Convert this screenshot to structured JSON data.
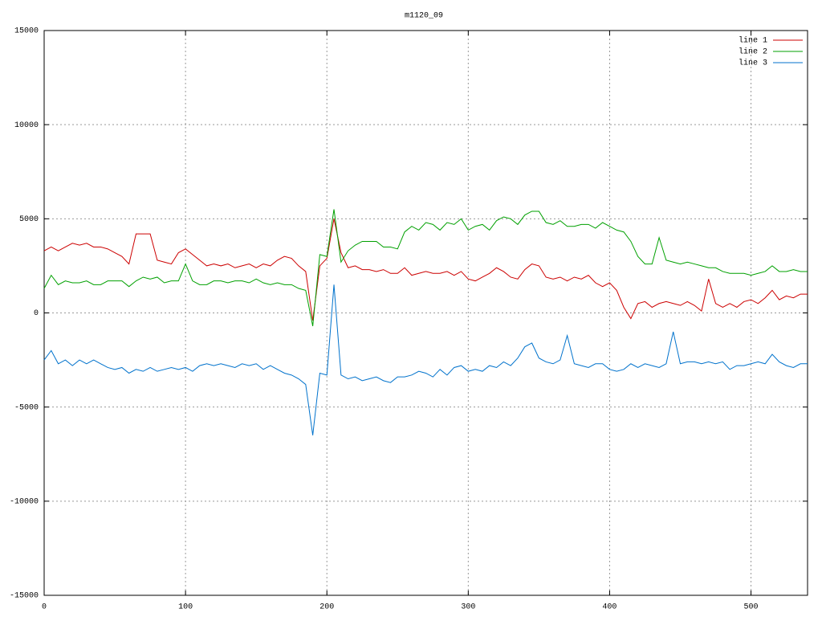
{
  "chart_data": {
    "type": "line",
    "title": "m1120_09",
    "x": [
      0,
      5,
      10,
      15,
      20,
      25,
      30,
      35,
      40,
      45,
      50,
      55,
      60,
      65,
      70,
      75,
      80,
      85,
      90,
      95,
      100,
      105,
      110,
      115,
      120,
      125,
      130,
      135,
      140,
      145,
      150,
      155,
      160,
      165,
      170,
      175,
      180,
      185,
      190,
      195,
      200,
      205,
      210,
      215,
      220,
      225,
      230,
      235,
      240,
      245,
      250,
      255,
      260,
      265,
      270,
      275,
      280,
      285,
      290,
      295,
      300,
      305,
      310,
      315,
      320,
      325,
      330,
      335,
      340,
      345,
      350,
      355,
      360,
      365,
      370,
      375,
      380,
      385,
      390,
      395,
      400,
      405,
      410,
      415,
      420,
      425,
      430,
      435,
      440,
      445,
      450,
      455,
      460,
      465,
      470,
      475,
      480,
      485,
      490,
      495,
      500,
      505,
      510,
      515,
      520,
      525,
      530,
      535,
      540
    ],
    "series": [
      {
        "name": "line 1",
        "color": "#cc0000",
        "values": [
          3300,
          3500,
          3300,
          3500,
          3700,
          3600,
          3700,
          3500,
          3500,
          3400,
          3200,
          3000,
          2600,
          4200,
          4200,
          4200,
          2800,
          2700,
          2600,
          3200,
          3400,
          3100,
          2800,
          2500,
          2600,
          2500,
          2600,
          2400,
          2500,
          2600,
          2400,
          2600,
          2500,
          2800,
          3000,
          2900,
          2500,
          2200,
          -400,
          2500,
          2900,
          5000,
          3200,
          2400,
          2500,
          2300,
          2300,
          2200,
          2300,
          2100,
          2100,
          2400,
          2000,
          2100,
          2200,
          2100,
          2100,
          2200,
          2000,
          2200,
          1800,
          1700,
          1900,
          2100,
          2400,
          2200,
          1900,
          1800,
          2300,
          2600,
          2500,
          1900,
          1800,
          1900,
          1700,
          1900,
          1800,
          2000,
          1600,
          1400,
          1600,
          1200,
          300,
          -300,
          500,
          600,
          300,
          500,
          600,
          500,
          400,
          600,
          400,
          100,
          1800,
          500,
          300,
          500,
          300,
          600,
          700,
          500,
          800,
          1200,
          700,
          900,
          800,
          1000,
          1000
        ]
      },
      {
        "name": "line 2",
        "color": "#00a000",
        "values": [
          1300,
          2000,
          1500,
          1700,
          1600,
          1600,
          1700,
          1500,
          1500,
          1700,
          1700,
          1700,
          1400,
          1700,
          1900,
          1800,
          1900,
          1600,
          1700,
          1700,
          2600,
          1700,
          1500,
          1500,
          1700,
          1700,
          1600,
          1700,
          1700,
          1600,
          1800,
          1600,
          1500,
          1600,
          1500,
          1500,
          1300,
          1200,
          -700,
          3100,
          3000,
          5500,
          2700,
          3300,
          3600,
          3800,
          3800,
          3800,
          3500,
          3500,
          3400,
          4300,
          4600,
          4400,
          4800,
          4700,
          4400,
          4800,
          4700,
          5000,
          4400,
          4600,
          4700,
          4400,
          4900,
          5100,
          5000,
          4700,
          5200,
          5400,
          5400,
          4800,
          4700,
          4900,
          4600,
          4600,
          4700,
          4700,
          4500,
          4800,
          4600,
          4400,
          4300,
          3800,
          3000,
          2600,
          2600,
          4000,
          2800,
          2700,
          2600,
          2700,
          2600,
          2500,
          2400,
          2400,
          2200,
          2100,
          2100,
          2100,
          2000,
          2100,
          2200,
          2500,
          2200,
          2200,
          2300,
          2200,
          2200
        ]
      },
      {
        "name": "line 3",
        "color": "#0072cc",
        "values": [
          -2500,
          -2000,
          -2700,
          -2500,
          -2800,
          -2500,
          -2700,
          -2500,
          -2700,
          -2900,
          -3000,
          -2900,
          -3200,
          -3000,
          -3100,
          -2900,
          -3100,
          -3000,
          -2900,
          -3000,
          -2900,
          -3100,
          -2800,
          -2700,
          -2800,
          -2700,
          -2800,
          -2900,
          -2700,
          -2800,
          -2700,
          -3000,
          -2800,
          -3000,
          -3200,
          -3300,
          -3500,
          -3800,
          -6500,
          -3200,
          -3300,
          1500,
          -3300,
          -3500,
          -3400,
          -3600,
          -3500,
          -3400,
          -3600,
          -3700,
          -3400,
          -3400,
          -3300,
          -3100,
          -3200,
          -3400,
          -3000,
          -3300,
          -2900,
          -2800,
          -3100,
          -3000,
          -3100,
          -2800,
          -2900,
          -2600,
          -2800,
          -2400,
          -1800,
          -1600,
          -2400,
          -2600,
          -2700,
          -2500,
          -1200,
          -2700,
          -2800,
          -2900,
          -2700,
          -2700,
          -3000,
          -3100,
          -3000,
          -2700,
          -2900,
          -2700,
          -2800,
          -2900,
          -2700,
          -1000,
          -2700,
          -2600,
          -2600,
          -2700,
          -2600,
          -2700,
          -2600,
          -3000,
          -2800,
          -2800,
          -2700,
          -2600,
          -2700,
          -2200,
          -2600,
          -2800,
          -2900,
          -2700,
          -2700
        ]
      }
    ],
    "xlim": [
      0,
      540
    ],
    "xticks": [
      0,
      100,
      200,
      300,
      400,
      500
    ],
    "ylim": [
      -15000,
      15000
    ],
    "yticks": [
      -15000,
      -10000,
      -5000,
      0,
      5000,
      10000,
      15000
    ],
    "grid": true,
    "legend": "top right"
  }
}
